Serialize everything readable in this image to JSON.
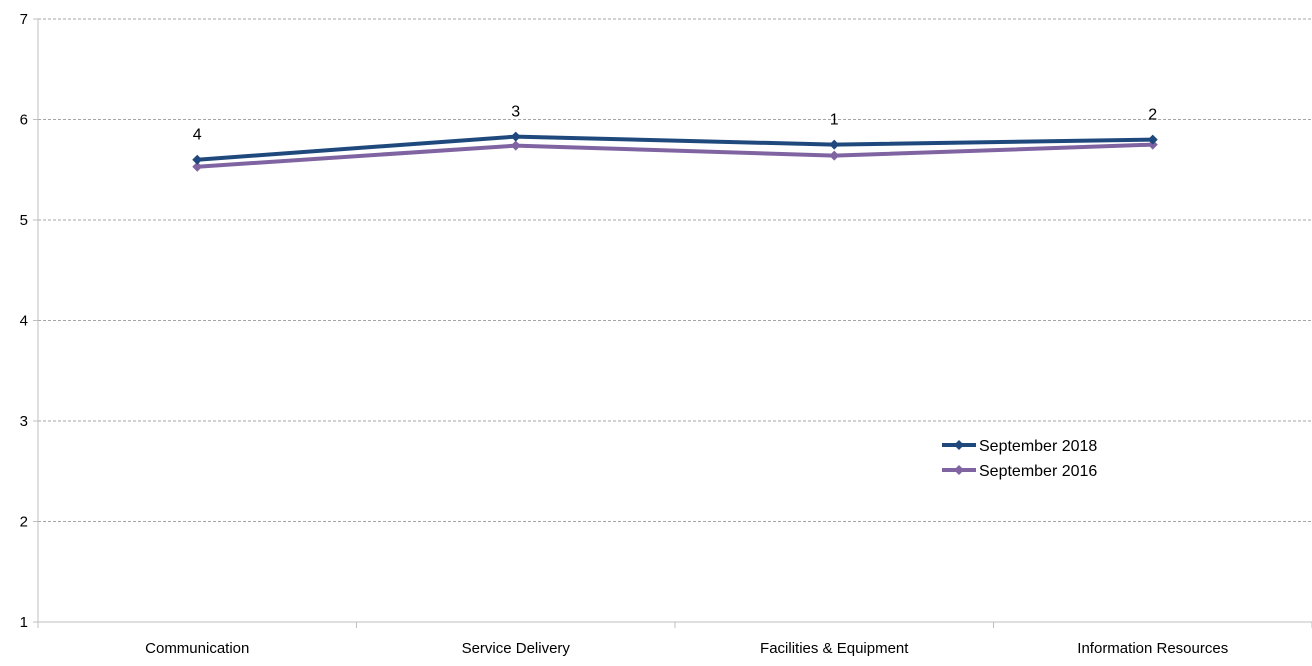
{
  "chart_data": {
    "type": "line",
    "categories": [
      "Communication",
      "Service Delivery",
      "Facilities & Equipment",
      "Information Resources"
    ],
    "series": [
      {
        "name": "September 2018",
        "values": [
          5.6,
          5.83,
          5.75,
          5.8
        ],
        "color": "#1f497d",
        "marker": "diamond"
      },
      {
        "name": "September 2016",
        "values": [
          5.53,
          5.74,
          5.64,
          5.75
        ],
        "color": "#8064a2",
        "marker": "diamond"
      }
    ],
    "data_labels": [
      "4",
      "3",
      "1",
      "2"
    ],
    "ylim": [
      1,
      7
    ],
    "yticks": [
      "1",
      "2",
      "3",
      "4",
      "5",
      "6",
      "7"
    ],
    "grid": "horizontal-dashed",
    "legend_position": "lower-right",
    "title": "",
    "xlabel": "",
    "ylabel": ""
  }
}
